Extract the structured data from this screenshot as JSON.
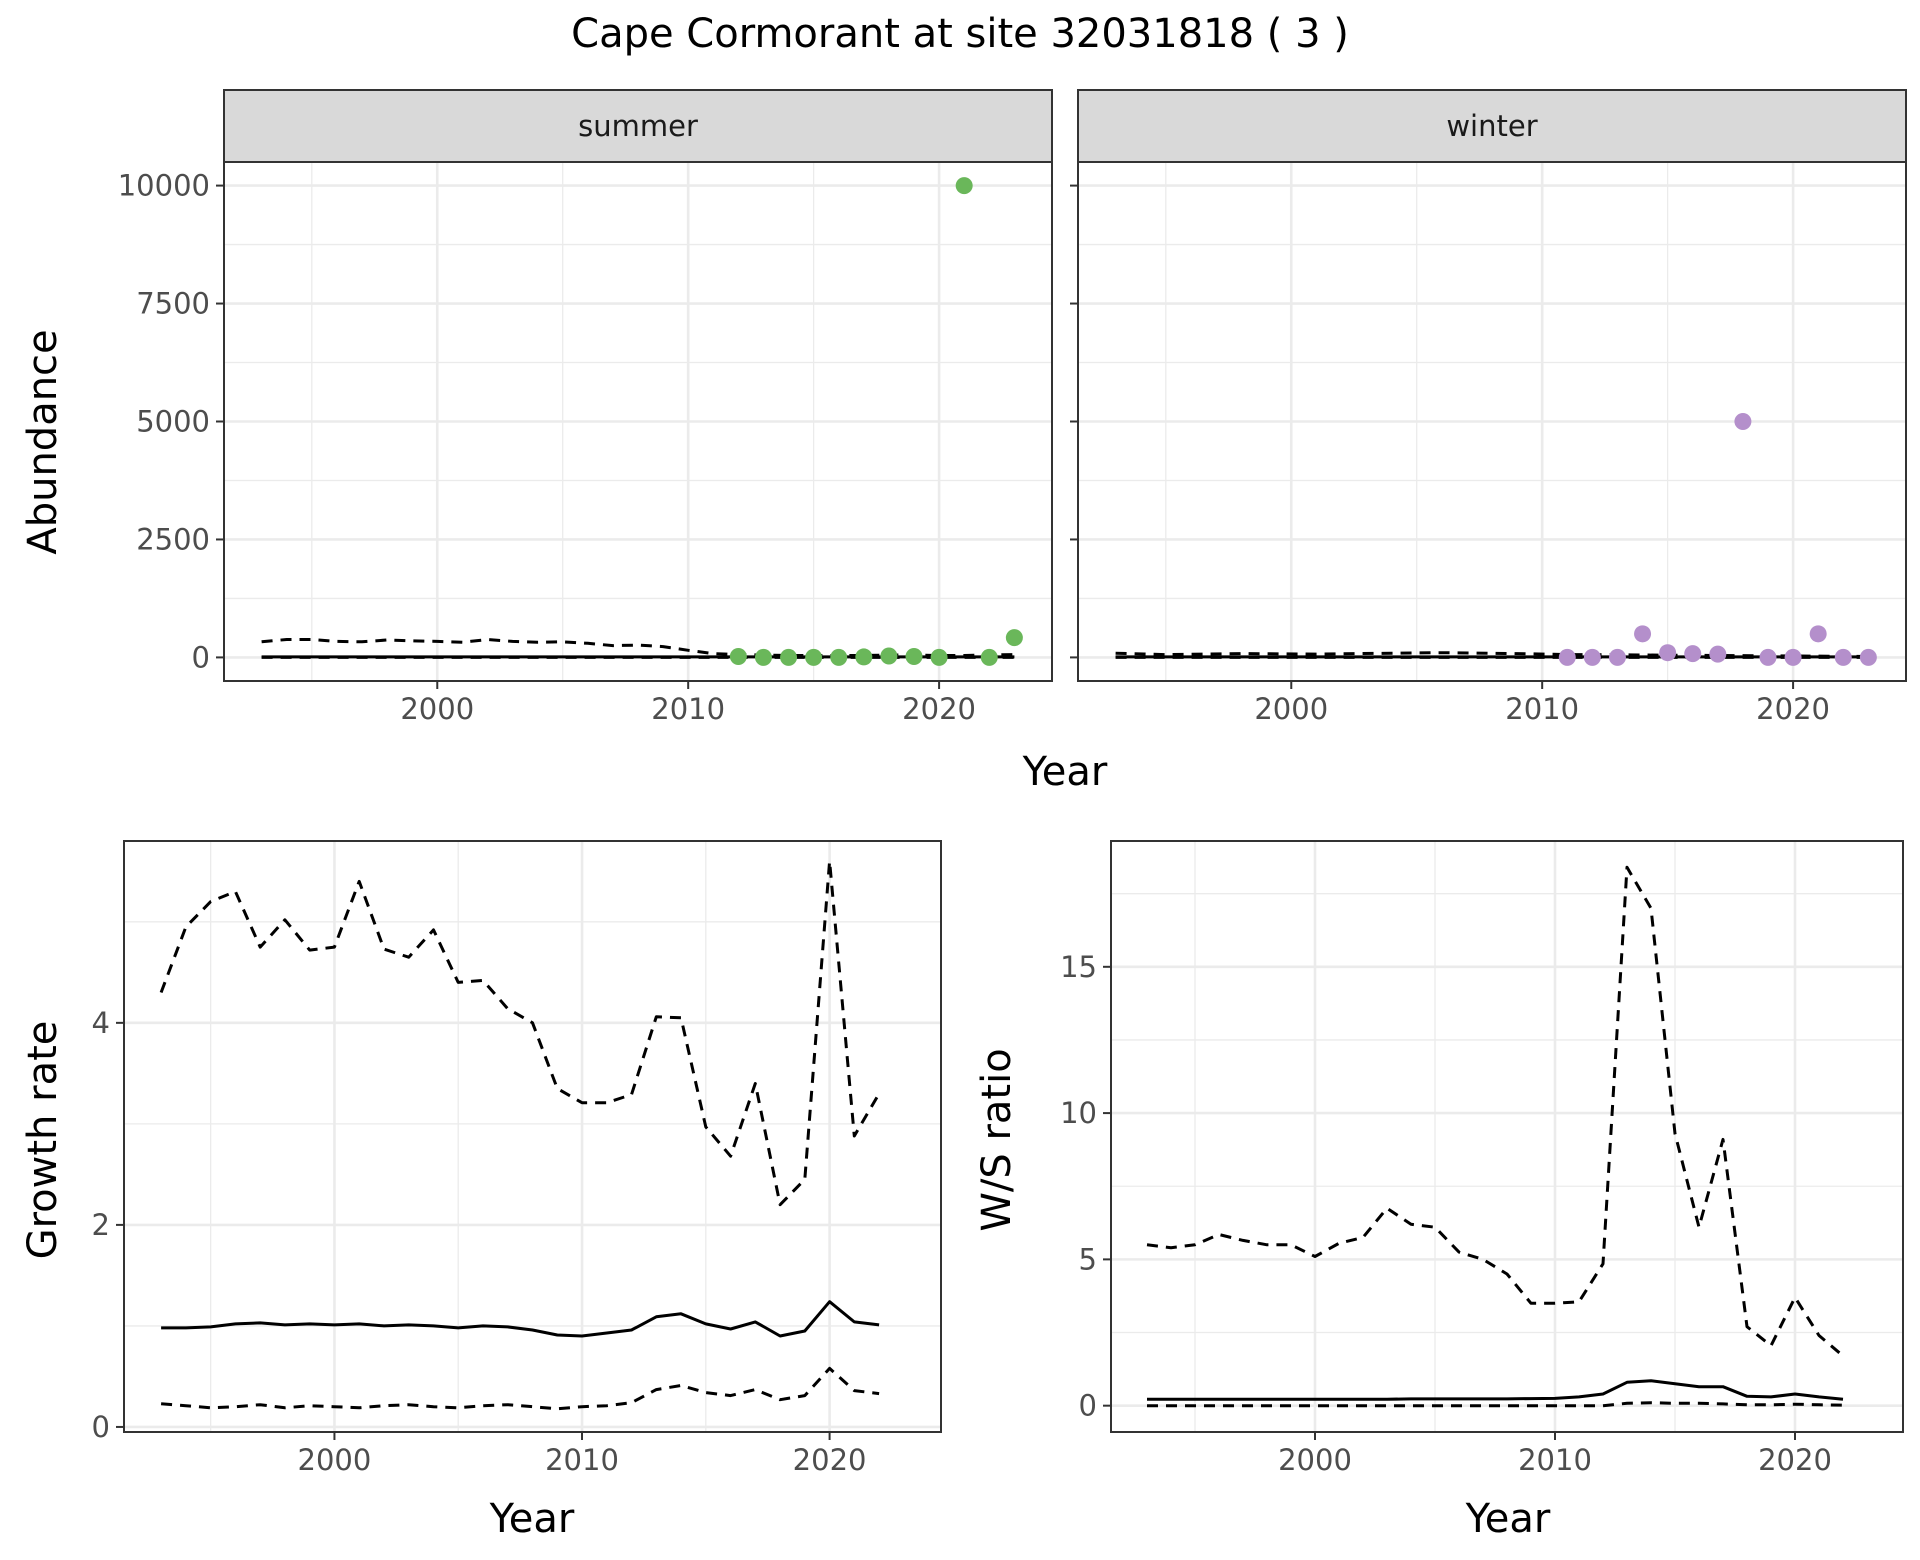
{
  "title": "Cape Cormorant at site 32031818 ( 3 )",
  "colors": {
    "summer_points": "#6ab75a",
    "winter_points": "#b48fcb",
    "line": "#000000",
    "panel_border": "#333333",
    "strip_bg": "#d9d9d9",
    "grid": "#ebebeb"
  },
  "chart_data": [
    {
      "type": "scatter",
      "facet": "summer",
      "xlabel": "Year",
      "ylabel": "Abundance",
      "xlim": [
        1991.5,
        2024.5
      ],
      "ylim": [
        -500,
        10500
      ],
      "x_ticks": [
        2000,
        2010,
        2020
      ],
      "y_ticks": [
        0,
        2500,
        5000,
        7500,
        10000
      ],
      "x_tick_labels": [
        "2000",
        "2010",
        "2020"
      ],
      "y_tick_labels": [
        "0",
        "2500",
        "5000",
        "7500",
        "10000"
      ],
      "grid": true,
      "points": {
        "x": [
          2012,
          2013,
          2014,
          2015,
          2016,
          2017,
          2018,
          2019,
          2020,
          2021,
          2022,
          2023
        ],
        "y": [
          20,
          0,
          0,
          0,
          0,
          10,
          30,
          20,
          0,
          10000,
          0,
          420
        ]
      },
      "lines": [
        {
          "style": "solid",
          "x": [
            1993,
            1996,
            2000,
            2004,
            2008,
            2012,
            2016,
            2020,
            2023
          ],
          "y": [
            10,
            10,
            10,
            10,
            10,
            10,
            10,
            10,
            10
          ]
        },
        {
          "style": "dashed",
          "x": [
            1993,
            1994,
            1995,
            1996,
            1997,
            1998,
            1999,
            2000,
            2001,
            2002,
            2003,
            2004,
            2005,
            2006,
            2007,
            2008,
            2009,
            2010,
            2011,
            2012,
            2013,
            2014,
            2015,
            2016,
            2017,
            2018,
            2019,
            2020,
            2021,
            2022,
            2023
          ],
          "y": [
            330,
            380,
            380,
            340,
            330,
            370,
            350,
            340,
            320,
            380,
            340,
            320,
            330,
            300,
            250,
            260,
            230,
            150,
            80,
            60,
            50,
            40,
            40,
            40,
            40,
            50,
            50,
            40,
            40,
            50,
            60
          ]
        },
        {
          "style": "dashed",
          "x": [
            1993,
            2000,
            2010,
            2020,
            2023
          ],
          "y": [
            0,
            0,
            0,
            0,
            0
          ]
        }
      ]
    },
    {
      "type": "scatter",
      "facet": "winter",
      "xlabel": "Year",
      "ylabel": "Abundance",
      "xlim": [
        1991.5,
        2024.5
      ],
      "ylim": [
        -500,
        10500
      ],
      "x_ticks": [
        2000,
        2010,
        2020
      ],
      "y_ticks": [
        0,
        2500,
        5000,
        7500,
        10000
      ],
      "x_tick_labels": [
        "2000",
        "2010",
        "2020"
      ],
      "y_tick_labels": [],
      "grid": true,
      "points": {
        "x": [
          2011,
          2012,
          2013,
          2014,
          2015,
          2016,
          2017,
          2018,
          2019,
          2020,
          2021,
          2022,
          2023
        ],
        "y": [
          0,
          0,
          0,
          500,
          100,
          80,
          70,
          5000,
          0,
          0,
          500,
          0,
          0
        ]
      },
      "lines": [
        {
          "style": "solid",
          "x": [
            1993,
            2000,
            2010,
            2020,
            2023
          ],
          "y": [
            10,
            10,
            10,
            10,
            10
          ]
        },
        {
          "style": "dashed",
          "x": [
            1993,
            1995,
            1998,
            2001,
            2004,
            2006,
            2009,
            2011,
            2014,
            2017,
            2020,
            2023
          ],
          "y": [
            90,
            60,
            80,
            70,
            90,
            100,
            80,
            60,
            50,
            40,
            30,
            20
          ]
        },
        {
          "style": "dashed",
          "x": [
            1993,
            2000,
            2010,
            2020,
            2023
          ],
          "y": [
            0,
            0,
            0,
            0,
            0
          ]
        }
      ]
    },
    {
      "type": "line",
      "xlabel": "Year",
      "ylabel": "Growth rate",
      "xlim": [
        1991.5,
        2024.5
      ],
      "ylim": [
        -0.05,
        5.8
      ],
      "x_ticks": [
        2000,
        2010,
        2020
      ],
      "y_ticks": [
        0,
        2,
        4
      ],
      "x_tick_labels": [
        "2000",
        "2010",
        "2020"
      ],
      "y_tick_labels": [
        "0",
        "2",
        "4"
      ],
      "grid": true,
      "x": [
        1993,
        1994,
        1995,
        1996,
        1997,
        1998,
        1999,
        2000,
        2001,
        2002,
        2003,
        2004,
        2005,
        2006,
        2007,
        2008,
        2009,
        2010,
        2011,
        2012,
        2013,
        2014,
        2015,
        2016,
        2017,
        2018,
        2019,
        2020,
        2021,
        2022
      ],
      "series": [
        {
          "style": "dashed",
          "values": [
            4.3,
            4.95,
            5.2,
            5.3,
            4.75,
            5.02,
            4.72,
            4.75,
            5.4,
            4.73,
            4.65,
            4.92,
            4.4,
            4.42,
            4.14,
            4.0,
            3.35,
            3.21,
            3.21,
            3.29,
            4.06,
            4.05,
            2.97,
            2.68,
            3.4,
            2.2,
            2.45,
            5.6,
            2.88,
            3.3
          ]
        },
        {
          "style": "solid",
          "values": [
            0.98,
            0.98,
            0.99,
            1.02,
            1.03,
            1.01,
            1.02,
            1.01,
            1.02,
            1.0,
            1.01,
            1.0,
            0.98,
            1.0,
            0.99,
            0.96,
            0.91,
            0.9,
            0.93,
            0.96,
            1.09,
            1.12,
            1.02,
            0.97,
            1.04,
            0.9,
            0.95,
            1.24,
            1.04,
            1.01
          ]
        },
        {
          "style": "dashed",
          "values": [
            0.23,
            0.21,
            0.19,
            0.2,
            0.22,
            0.19,
            0.21,
            0.2,
            0.19,
            0.21,
            0.22,
            0.2,
            0.19,
            0.21,
            0.22,
            0.2,
            0.18,
            0.2,
            0.21,
            0.24,
            0.37,
            0.41,
            0.34,
            0.31,
            0.37,
            0.27,
            0.31,
            0.58,
            0.36,
            0.33
          ]
        }
      ]
    },
    {
      "type": "line",
      "xlabel": "Year",
      "ylabel": "W/S ratio",
      "xlim": [
        1991.5,
        2024.5
      ],
      "ylim": [
        -0.9,
        19.3
      ],
      "x_ticks": [
        2000,
        2010,
        2020
      ],
      "y_ticks": [
        0,
        5,
        10,
        15
      ],
      "x_tick_labels": [
        "2000",
        "2010",
        "2020"
      ],
      "y_tick_labels": [
        "0",
        "5",
        "10",
        "15"
      ],
      "grid": true,
      "x": [
        1993,
        1994,
        1995,
        1996,
        1997,
        1998,
        1999,
        2000,
        2001,
        2002,
        2003,
        2004,
        2005,
        2006,
        2007,
        2008,
        2009,
        2010,
        2011,
        2012,
        2013,
        2014,
        2015,
        2016,
        2017,
        2018,
        2019,
        2020,
        2021,
        2022
      ],
      "series": [
        {
          "style": "dashed",
          "values": [
            5.5,
            5.4,
            5.5,
            5.85,
            5.65,
            5.5,
            5.5,
            5.1,
            5.55,
            5.75,
            6.75,
            6.2,
            6.1,
            5.25,
            5.0,
            4.5,
            3.5,
            3.5,
            3.55,
            4.85,
            18.4,
            17.0,
            9.3,
            6.1,
            9.1,
            2.7,
            2.05,
            3.7,
            2.4,
            1.7
          ]
        },
        {
          "style": "solid",
          "values": [
            0.22,
            0.22,
            0.22,
            0.22,
            0.22,
            0.22,
            0.22,
            0.22,
            0.22,
            0.22,
            0.22,
            0.23,
            0.23,
            0.23,
            0.23,
            0.23,
            0.24,
            0.25,
            0.3,
            0.4,
            0.8,
            0.85,
            0.75,
            0.65,
            0.65,
            0.32,
            0.3,
            0.4,
            0.3,
            0.22
          ]
        },
        {
          "style": "dashed",
          "values": [
            0.0,
            0.0,
            0.0,
            0.0,
            0.0,
            0.0,
            0.0,
            0.0,
            0.0,
            0.0,
            0.0,
            0.0,
            0.0,
            0.0,
            0.0,
            0.0,
            0.0,
            0.0,
            0.0,
            0.0,
            0.08,
            0.1,
            0.08,
            0.08,
            0.06,
            0.03,
            0.03,
            0.05,
            0.03,
            0.02
          ]
        }
      ]
    }
  ]
}
